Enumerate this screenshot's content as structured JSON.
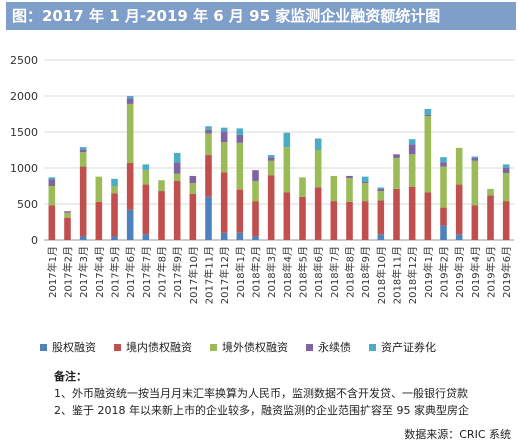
{
  "title": "图：2017 年 1 月-2019 年 6 月 95 家监测企业融资额统计图",
  "chart_data": {
    "type": "bar",
    "stacked": true,
    "ylim": [
      0,
      2500
    ],
    "yticks": [
      0,
      500,
      1000,
      1500,
      2000,
      2500
    ],
    "grid": true,
    "legend_position": "bottom",
    "categories": [
      "2017年1月",
      "2017年2月",
      "2017年3月",
      "2017年4月",
      "2017年5月",
      "2017年6月",
      "2017年7月",
      "2017年8月",
      "2017年9月",
      "2017年10月",
      "2017年11月",
      "2017年12月",
      "2018年1月",
      "2018年2月",
      "2018年3月",
      "2018年4月",
      "2018年5月",
      "2018年6月",
      "2018年7月",
      "2018年8月",
      "2018年9月",
      "2018年10月",
      "2018年11月",
      "2018年12月",
      "2019年1月",
      "2019年2月",
      "2019年3月",
      "2019年4月",
      "2019年5月",
      "2019年6月"
    ],
    "series": [
      {
        "name": "股权融资",
        "color": "#4f81bd",
        "values": [
          0,
          0,
          50,
          0,
          50,
          420,
          80,
          0,
          0,
          0,
          600,
          100,
          100,
          50,
          0,
          0,
          0,
          0,
          0,
          0,
          0,
          80,
          0,
          0,
          0,
          200,
          80,
          0,
          0,
          0
        ]
      },
      {
        "name": "境内债权融资",
        "color": "#c0504d",
        "values": [
          480,
          310,
          970,
          530,
          600,
          650,
          690,
          680,
          820,
          640,
          580,
          840,
          600,
          490,
          900,
          660,
          600,
          730,
          540,
          530,
          540,
          470,
          710,
          740,
          660,
          250,
          690,
          480,
          620,
          540
        ]
      },
      {
        "name": "境外债权融资",
        "color": "#9bbb59",
        "values": [
          270,
          70,
          200,
          350,
          100,
          820,
          200,
          150,
          100,
          150,
          300,
          420,
          650,
          280,
          200,
          630,
          270,
          520,
          350,
          330,
          250,
          130,
          430,
          450,
          1060,
          570,
          510,
          620,
          90,
          390
        ]
      },
      {
        "name": "永续债",
        "color": "#8064a2",
        "values": [
          90,
          20,
          40,
          0,
          0,
          80,
          0,
          0,
          160,
          100,
          50,
          150,
          110,
          150,
          50,
          0,
          0,
          0,
          0,
          30,
          20,
          30,
          50,
          140,
          20,
          60,
          0,
          40,
          0,
          70
        ]
      },
      {
        "name": "资产证券化",
        "color": "#4bacc6",
        "values": [
          30,
          0,
          30,
          0,
          100,
          30,
          80,
          0,
          130,
          0,
          50,
          50,
          90,
          0,
          30,
          200,
          0,
          160,
          0,
          0,
          70,
          20,
          0,
          70,
          80,
          70,
          0,
          20,
          0,
          50
        ]
      }
    ]
  },
  "notes": {
    "heading": "备注：",
    "lines": [
      "1、外币融资统一按当月月末汇率换算为人民币，监测数据不含开发贷、一般银行贷款",
      "2、鉴于 2018 年以来新上市的企业较多，融资监测的企业范围扩容至 95 家典型房企"
    ]
  },
  "source": "数据来源：CRIC 系统"
}
